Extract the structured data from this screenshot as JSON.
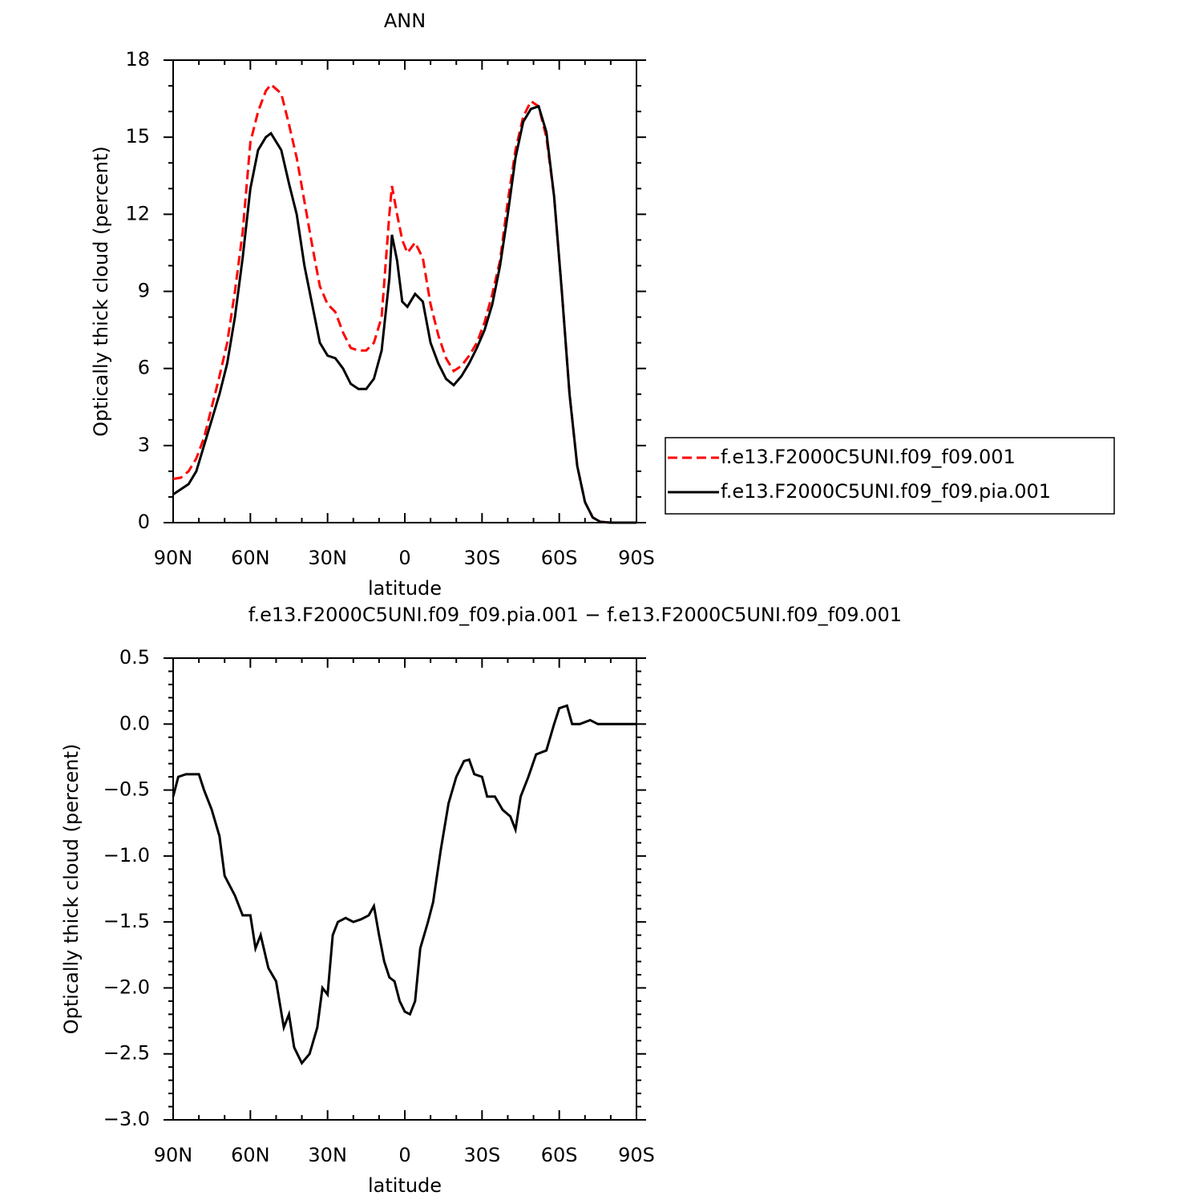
{
  "chart_data": [
    {
      "type": "line",
      "title": "ANN",
      "xlabel": "latitude",
      "ylabel": "Optically thick cloud (percent)",
      "x": [
        90,
        87,
        84,
        81,
        78,
        75,
        72,
        69,
        66,
        63,
        60,
        57,
        54,
        52,
        48,
        45,
        42,
        39,
        36,
        33,
        30,
        27,
        24,
        21,
        18,
        15,
        12,
        9,
        6,
        5,
        3,
        1,
        -1,
        -4,
        -7,
        -10,
        -13,
        -16,
        -19,
        -22,
        -25,
        -28,
        -31,
        -34,
        -37,
        -40,
        -43,
        -46,
        -49,
        -52,
        -55,
        -58,
        -61,
        -64,
        -67,
        -70,
        -73,
        -76,
        -80,
        -85,
        -90
      ],
      "series": [
        {
          "name": "f.e13.F2000C5UNI.f09_f09.001",
          "color": "#ff0000",
          "linestyle": "dashed",
          "values": [
            1.7,
            1.75,
            2.0,
            2.5,
            3.3,
            4.5,
            5.7,
            7.0,
            9.0,
            11.3,
            14.8,
            16.0,
            16.8,
            17.05,
            16.7,
            15.5,
            14.2,
            12.5,
            10.8,
            9.2,
            8.5,
            8.2,
            7.4,
            6.8,
            6.7,
            6.7,
            7.0,
            8.0,
            12.0,
            13.1,
            12.0,
            11.0,
            10.5,
            10.9,
            10.3,
            8.5,
            7.3,
            6.4,
            5.9,
            6.1,
            6.5,
            7.0,
            7.8,
            8.9,
            10.2,
            12.5,
            14.5,
            15.8,
            16.4,
            16.2,
            15.0,
            12.7,
            9.0,
            5.0,
            2.2,
            0.8,
            0.2,
            0.03,
            0,
            0,
            0
          ]
        },
        {
          "name": "f.e13.F2000C5UNI.f09_f09.pia.001",
          "color": "#000000",
          "linestyle": "solid",
          "values": [
            1.1,
            1.3,
            1.5,
            2.0,
            3.0,
            4.0,
            5.0,
            6.2,
            8.0,
            10.3,
            13.0,
            14.5,
            15.0,
            15.15,
            14.5,
            13.2,
            12.0,
            10.0,
            8.5,
            7.0,
            6.5,
            6.4,
            6.0,
            5.4,
            5.2,
            5.2,
            5.6,
            6.7,
            9.5,
            11.2,
            10.2,
            8.6,
            8.4,
            8.9,
            8.6,
            7.0,
            6.2,
            5.6,
            5.35,
            5.7,
            6.2,
            6.8,
            7.5,
            8.5,
            10.0,
            12.0,
            14.2,
            15.6,
            16.1,
            16.2,
            15.2,
            12.7,
            9.0,
            5.0,
            2.2,
            0.8,
            0.2,
            0.03,
            0,
            0,
            0
          ]
        }
      ],
      "xlim": [
        90,
        -90
      ],
      "xticks": [
        {
          "value": 90,
          "label": "90N"
        },
        {
          "value": 60,
          "label": "60N"
        },
        {
          "value": 30,
          "label": "30N"
        },
        0,
        {
          "value": -30,
          "label": "30S"
        },
        {
          "value": -60,
          "label": "60S"
        },
        {
          "value": -90,
          "label": "90S"
        }
      ],
      "ylim": [
        0,
        18
      ],
      "yticks": [
        0,
        3,
        6,
        9,
        12,
        15,
        18
      ]
    },
    {
      "type": "line",
      "title": "f.e13.F2000C5UNI.f09_f09.pia.001 − f.e13.F2000C5UNI.f09_f09.001",
      "xlabel": "latitude",
      "ylabel": "Optically thick cloud (percent)",
      "x": [
        90,
        88,
        85,
        80,
        78,
        75,
        72,
        70,
        66,
        63,
        60,
        58,
        56,
        53,
        50,
        47,
        45,
        43,
        40,
        37,
        34,
        32,
        30,
        28,
        26,
        23,
        20,
        17,
        14,
        12,
        10,
        8,
        6,
        4,
        2,
        0,
        -2,
        -4,
        -6,
        -9,
        -11,
        -14,
        -17,
        -20,
        -23,
        -25,
        -27,
        -30,
        -32,
        -35,
        -38,
        -41,
        -43,
        -45,
        -48,
        -51,
        -55,
        -58,
        -60,
        -63,
        -65,
        -68,
        -72,
        -75,
        -90
      ],
      "series": [
        {
          "name": "difference",
          "color": "#000000",
          "linestyle": "solid",
          "values": [
            -0.55,
            -0.4,
            -0.38,
            -0.38,
            -0.5,
            -0.65,
            -0.85,
            -1.15,
            -1.3,
            -1.45,
            -1.45,
            -1.7,
            -1.6,
            -1.85,
            -1.95,
            -2.3,
            -2.2,
            -2.45,
            -2.57,
            -2.5,
            -2.3,
            -2.0,
            -2.05,
            -1.6,
            -1.5,
            -1.47,
            -1.5,
            -1.48,
            -1.45,
            -1.38,
            -1.6,
            -1.8,
            -1.92,
            -1.95,
            -2.1,
            -2.18,
            -2.2,
            -2.1,
            -1.7,
            -1.5,
            -1.35,
            -0.95,
            -0.6,
            -0.4,
            -0.28,
            -0.27,
            -0.38,
            -0.4,
            -0.55,
            -0.55,
            -0.65,
            -0.7,
            -0.8,
            -0.55,
            -0.4,
            -0.23,
            -0.2,
            0.0,
            0.12,
            0.14,
            0.0,
            0.0,
            0.03,
            0.0,
            0.0
          ]
        }
      ],
      "xlim": [
        90,
        -90
      ],
      "xticks": [
        {
          "value": 90,
          "label": "90N"
        },
        {
          "value": 60,
          "label": "60N"
        },
        {
          "value": 30,
          "label": "30N"
        },
        0,
        {
          "value": -30,
          "label": "30S"
        },
        {
          "value": -60,
          "label": "60S"
        },
        {
          "value": -90,
          "label": "90S"
        }
      ],
      "ylim": [
        -3.0,
        0.5
      ],
      "yticks": [
        {
          "value": 0.5,
          "label": "0.5"
        },
        {
          "value": 0.0,
          "label": "0.0"
        },
        {
          "value": -0.5,
          "label": "−0.5"
        },
        {
          "value": -1.0,
          "label": "−1.0"
        },
        {
          "value": -1.5,
          "label": "−1.5"
        },
        {
          "value": -2.0,
          "label": "−2.0"
        },
        {
          "value": -2.5,
          "label": "−2.5"
        },
        {
          "value": -3.0,
          "label": "−3.0"
        }
      ]
    }
  ]
}
